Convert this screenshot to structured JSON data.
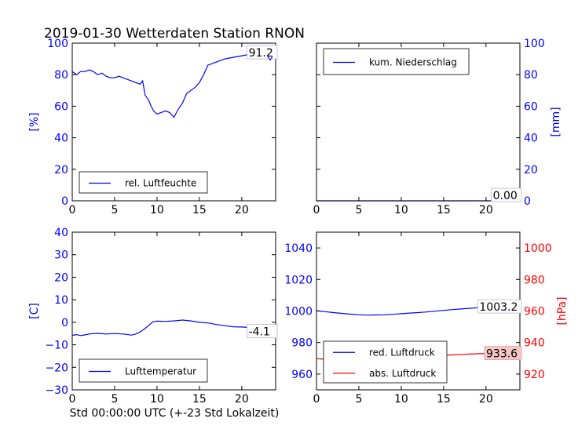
{
  "figure": {
    "title": "2019-01-30 Wetterdaten Station RNON",
    "xlabel": "Std 00:00:00 UTC (+-23 Std Lokalzeit)"
  },
  "chart_data": [
    {
      "type": "line",
      "panel": "top-left",
      "ylabel": "[%]",
      "xlim": [
        0,
        24
      ],
      "ylim": [
        0,
        100
      ],
      "xticks": [
        "0",
        "5",
        "10",
        "15",
        "20"
      ],
      "yticks": [
        "0",
        "20",
        "40",
        "60",
        "80",
        "100"
      ],
      "ytick_color": "#0000ff",
      "legend": {
        "placement": "lower-left"
      },
      "last_value_label": "91.2",
      "series": [
        {
          "name": "rel. Luftfeuchte",
          "color": "#0000ff",
          "x": [
            0,
            0.5,
            1,
            1.5,
            2,
            2.5,
            3,
            3.5,
            4,
            4.5,
            5,
            5.5,
            6,
            6.5,
            7,
            7.5,
            8,
            8.3,
            8.6,
            9,
            9.3,
            9.6,
            10,
            10.5,
            11,
            11.5,
            12,
            12.5,
            13,
            13.5,
            14,
            14.5,
            15,
            15.5,
            16,
            17,
            18,
            19,
            20,
            21,
            22,
            23,
            23.5,
            24
          ],
          "y": [
            82,
            80,
            82,
            82,
            83,
            82,
            80,
            81,
            79,
            78,
            78,
            79,
            78,
            77,
            76,
            75,
            74,
            76,
            67,
            64,
            60,
            57,
            55,
            56,
            57,
            56,
            53,
            58,
            62,
            68,
            70,
            72,
            75,
            80,
            86,
            88,
            90,
            91,
            92,
            93,
            92,
            92,
            91,
            91.2
          ]
        }
      ]
    },
    {
      "type": "line",
      "panel": "top-right",
      "ylabel": "[mm]",
      "xlim": [
        0,
        24
      ],
      "ylim": [
        0,
        100
      ],
      "xticks": [
        "0",
        "5",
        "10",
        "15",
        "20"
      ],
      "yticks": [
        "0",
        "20",
        "40",
        "60",
        "80",
        "100"
      ],
      "ytick_color": "#0000ff",
      "legend": {
        "placement": "upper-left"
      },
      "last_value_label": "0.00",
      "series": [
        {
          "name": "kum. Niederschlag",
          "color": "#0000ff",
          "x": [
            0,
            24
          ],
          "y": [
            0,
            0
          ]
        }
      ]
    },
    {
      "type": "line",
      "panel": "bottom-left",
      "ylabel": "[C]",
      "xlim": [
        0,
        24
      ],
      "ylim": [
        -30,
        40
      ],
      "xticks": [
        "0",
        "5",
        "10",
        "15",
        "20"
      ],
      "yticks": [
        "−30",
        "−20",
        "−10",
        "0",
        "10",
        "20",
        "30",
        "40"
      ],
      "ytick_color": "#0000ff",
      "legend": {
        "placement": "lower-left"
      },
      "last_value_label": "-4.1",
      "series": [
        {
          "name": "Lufttemperatur",
          "color": "#0000ff",
          "x": [
            0,
            0.5,
            1,
            1.5,
            2,
            3,
            4,
            5,
            6,
            7,
            7.5,
            8,
            8.5,
            9,
            9.5,
            10,
            11,
            12,
            13,
            14,
            15,
            16,
            17,
            18,
            19,
            20,
            21,
            22,
            23,
            24
          ],
          "y": [
            -5.8,
            -5.5,
            -5.9,
            -5.6,
            -5.2,
            -4.9,
            -5.2,
            -5.0,
            -5.2,
            -5.7,
            -5.2,
            -4.3,
            -3.0,
            -1.5,
            0.2,
            0.5,
            0.4,
            0.6,
            1.0,
            0.6,
            0.0,
            -0.3,
            -1.0,
            -1.5,
            -2.0,
            -2.1,
            -2.3,
            -3.0,
            -3.5,
            -4.1
          ]
        }
      ]
    },
    {
      "type": "line",
      "panel": "bottom-right",
      "xlim": [
        0,
        24
      ],
      "ylim": [
        950,
        1050
      ],
      "ylim_right": [
        910,
        1010
      ],
      "ylabel_right": "[hPa]",
      "xticks": [
        "0",
        "5",
        "10",
        "15",
        "20"
      ],
      "yticks": [
        "960",
        "980",
        "1000",
        "1020",
        "1040"
      ],
      "yticks_right": [
        "920",
        "940",
        "960",
        "980",
        "1000"
      ],
      "ytick_color": "#0000ff",
      "ytick_color_right": "#ff0000",
      "legend": {
        "placement": "lower-left"
      },
      "last_value_labels": [
        "1003.2",
        "933.6"
      ],
      "series": [
        {
          "name": "red. Luftdruck",
          "color": "#0000ff",
          "axis": "left",
          "x": [
            0,
            1,
            2,
            3,
            4,
            5,
            6,
            7,
            8,
            9,
            10,
            11,
            12,
            13,
            14,
            15,
            16,
            17,
            18,
            19,
            20,
            21,
            22,
            23,
            24
          ],
          "y": [
            1000.2,
            999.6,
            999.0,
            998.5,
            998.0,
            997.6,
            997.4,
            997.5,
            997.6,
            997.9,
            998.3,
            998.7,
            999.0,
            999.4,
            999.9,
            1000.4,
            1000.9,
            1001.3,
            1001.7,
            1002.1,
            1002.4,
            1002.7,
            1003.0,
            1003.1,
            1003.2
          ]
        },
        {
          "name": "abs. Luftdruck",
          "color": "#ff0000",
          "axis": "right",
          "x": [
            0,
            1,
            2,
            3,
            4,
            5,
            6,
            7,
            8,
            9,
            10,
            11,
            12,
            13,
            14,
            15,
            16,
            17,
            18,
            19,
            20,
            21,
            22,
            23,
            24
          ],
          "y": [
            929.8,
            929.4,
            929.0,
            928.6,
            928.2,
            927.9,
            927.6,
            927.6,
            927.8,
            928.2,
            928.8,
            929.5,
            930.2,
            930.9,
            931.5,
            931.9,
            932.2,
            932.5,
            932.7,
            932.9,
            933.1,
            933.3,
            933.5,
            933.5,
            933.6
          ]
        }
      ]
    }
  ]
}
